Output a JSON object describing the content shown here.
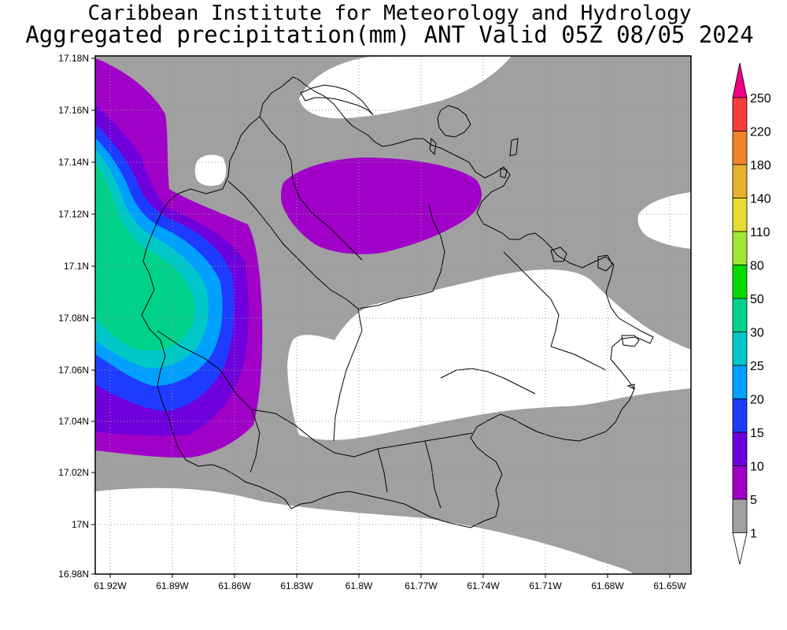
{
  "header": {
    "title_line1": "Caribbean Institute for Meteorology and Hydrology",
    "title_line2": "Aggregated precipitation(mm) ANT Valid 05Z 08/05 2024"
  },
  "axes": {
    "y_ticks": [
      "17.18N",
      "17.16N",
      "17.14N",
      "17.12N",
      "17.1N",
      "17.08N",
      "17.06N",
      "17.04N",
      "17.02N",
      "17N",
      "16.98N"
    ],
    "x_ticks": [
      "61.92W",
      "61.89W",
      "61.86W",
      "61.83W",
      "61.8W",
      "61.77W",
      "61.74W",
      "61.71W",
      "61.68W",
      "61.65W"
    ]
  },
  "legend": {
    "levels": [
      "250",
      "220",
      "180",
      "140",
      "110",
      "80",
      "50",
      "30",
      "25",
      "20",
      "15",
      "10",
      "5",
      "1"
    ],
    "colors": [
      "#f00082",
      "#fa3c3c",
      "#f08228",
      "#e6af2d",
      "#e6dc32",
      "#a0e632",
      "#00dc00",
      "#00d28c",
      "#00c8c8",
      "#00a0ff",
      "#1e3cff",
      "#6e00dc",
      "#a000c8",
      "#a0a0a0",
      "#ffffff"
    ]
  },
  "colors": {
    "no_rain": "#ffffff",
    "band_1_5": "#a0a0a0",
    "band_5_10": "#a000c8",
    "band_10_15": "#6e00dc",
    "band_15_20": "#1e3cff",
    "band_20_25": "#00a0ff",
    "band_25_30": "#00c8c8",
    "band_30_50": "#00d28c"
  }
}
